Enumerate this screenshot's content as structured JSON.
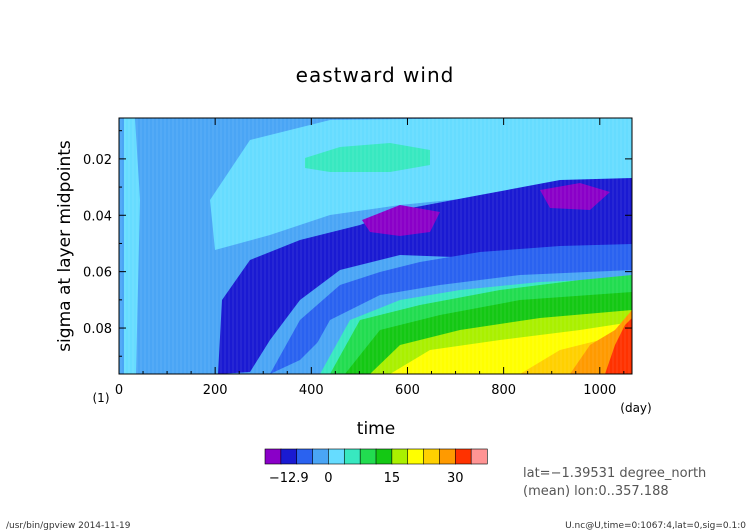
{
  "chart_data": {
    "type": "heatmap",
    "title": "eastward wind",
    "xlabel": "time",
    "ylabel": "sigma at layer midpoints",
    "x_unit": "(day)",
    "y_unit": "(1)",
    "xlim": [
      0,
      1067
    ],
    "ylim": [
      0.0963,
      0.0055
    ],
    "x_ticks": [
      "0",
      "200",
      "400",
      "600",
      "800",
      "1000"
    ],
    "x_tick_values": [
      0,
      200,
      400,
      600,
      800,
      1000
    ],
    "y_ticks": [
      "0.02",
      "0.04",
      "0.06",
      "0.08"
    ],
    "y_tick_values": [
      0.02,
      0.04,
      0.06,
      0.08
    ],
    "colorbar": {
      "labels": [
        "−12.9",
        "0",
        "15",
        "30"
      ],
      "colors": [
        "#8a00c8",
        "#1a1ad2",
        "#2a62f0",
        "#4aa5f5",
        "#66dcff",
        "#38e8c0",
        "#22dc50",
        "#14c814",
        "#aaf000",
        "#ffff00",
        "#ffd000",
        "#ff9a00",
        "#ff3200",
        "#ff9494"
      ]
    },
    "info": [
      "lat=−1.39531 degree_north",
      "(mean) lon:0..357.188"
    ],
    "footer_left": "/usr/bin/gpview  2014-11-19",
    "footer_right": "U.nc@U,time=0:1067:4,lat=0,sig=0.1:0"
  }
}
